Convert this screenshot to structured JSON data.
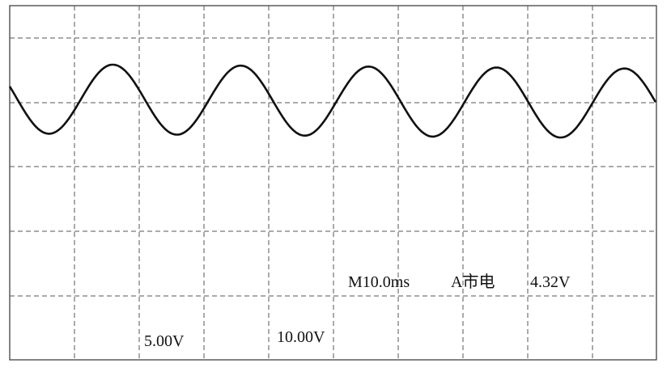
{
  "status": {
    "timebase": "M10.0ms",
    "trigger": "A市电",
    "trigger_level": "4.32V"
  },
  "channels": {
    "ch1_scale": "5.00V",
    "ch2_scale": "10.00V"
  }
}
